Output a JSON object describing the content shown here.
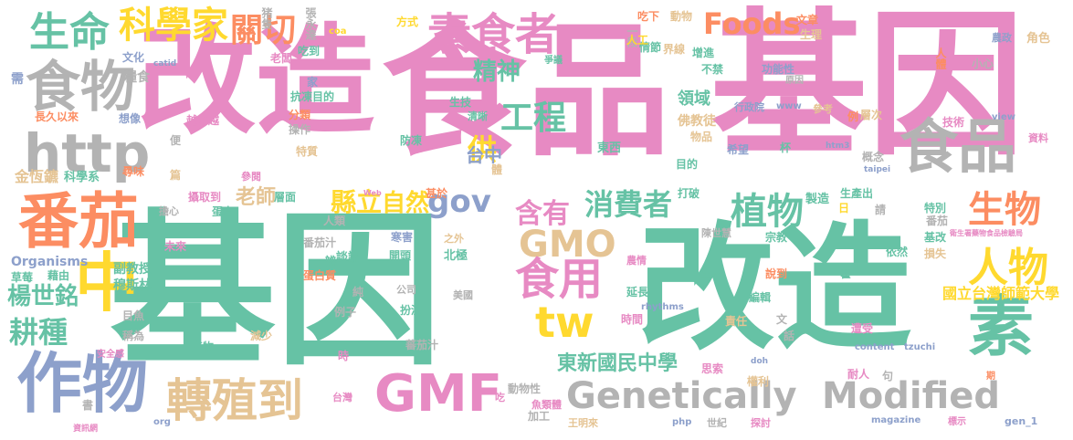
{
  "palette": {
    "green": "#66c2a5",
    "pink": "#e78ac3",
    "orange": "#fc8d62",
    "blue": "#8da0cb",
    "lime": "#a6d854",
    "yellow": "#ffd92f",
    "tan": "#e5c494",
    "gray": "#b3b3b3"
  },
  "words": [
    {
      "text": "改造",
      "color": "pink"
    },
    {
      "text": "食品",
      "color": "pink"
    },
    {
      "text": "基因",
      "color": "pink"
    },
    {
      "text": "基因",
      "color": "green"
    },
    {
      "text": "改造",
      "color": "green"
    },
    {
      "text": "食物",
      "color": "gray"
    },
    {
      "text": "食品",
      "color": "gray"
    },
    {
      "text": "http",
      "color": "gray"
    },
    {
      "text": "番茄",
      "color": "orange"
    },
    {
      "text": "作物",
      "color": "blue"
    },
    {
      "text": "GMF",
      "color": "pink"
    },
    {
      "text": "Genetically",
      "color": "gray"
    },
    {
      "text": "Modified",
      "color": "gray"
    },
    {
      "text": "轉殖到",
      "color": "tan"
    },
    {
      "text": "素",
      "color": "green"
    },
    {
      "text": "生命",
      "color": "green"
    },
    {
      "text": "科學家",
      "color": "yellow"
    },
    {
      "text": "關切",
      "color": "orange"
    },
    {
      "text": "素食者",
      "color": "pink"
    },
    {
      "text": "Foods",
      "color": "orange"
    },
    {
      "text": "精神",
      "color": "green"
    },
    {
      "text": "工程",
      "color": "green"
    },
    {
      "text": "GMO",
      "color": "tan"
    },
    {
      "text": "tw",
      "color": "yellow"
    },
    {
      "text": "生物",
      "color": "orange"
    },
    {
      "text": "人物",
      "color": "yellow"
    },
    {
      "text": "植物",
      "color": "green"
    },
    {
      "text": "含有",
      "color": "pink"
    },
    {
      "text": "食用",
      "color": "pink"
    },
    {
      "text": "消費者",
      "color": "green"
    },
    {
      "text": "中",
      "color": "yellow"
    },
    {
      "text": "耕種",
      "color": "green"
    },
    {
      "text": "楊世銘",
      "color": "green"
    },
    {
      "text": "縣立",
      "color": "yellow"
    },
    {
      "text": "東新國民中學",
      "color": "green"
    },
    {
      "text": "gov",
      "color": "blue"
    },
    {
      "text": "供",
      "color": "yellow"
    },
    {
      "text": "台中",
      "color": "blue"
    },
    {
      "text": "自然",
      "color": "yellow"
    },
    {
      "text": "老師",
      "color": "tan"
    },
    {
      "text": "國立台灣師範大學",
      "color": "yellow"
    },
    {
      "text": "文化",
      "color": "blue"
    },
    {
      "text": "需",
      "color": "blue"
    },
    {
      "text": "糧食",
      "color": "gray"
    },
    {
      "text": "長久以來",
      "color": "orange"
    },
    {
      "text": "想像",
      "color": "blue"
    },
    {
      "text": "金恆鑣",
      "color": "tan"
    },
    {
      "text": "科學系",
      "color": "green"
    },
    {
      "text": "尋味",
      "color": "orange"
    },
    {
      "text": "Organisms",
      "color": "blue"
    },
    {
      "text": "副教授",
      "color": "green"
    },
    {
      "text": "草莓",
      "color": "green"
    },
    {
      "text": "藉由",
      "color": "green"
    },
    {
      "text": "穆斯林",
      "color": "green"
    },
    {
      "text": "目魚",
      "color": "gray"
    },
    {
      "text": "稱為",
      "color": "gray"
    },
    {
      "text": "安全感",
      "color": "pink"
    },
    {
      "text": "書",
      "color": "gray"
    },
    {
      "text": "資訊網",
      "color": "pink"
    },
    {
      "text": "猪隻",
      "color": "gray"
    },
    {
      "text": "張永達",
      "color": "gray"
    },
    {
      "text": "方式",
      "color": "yellow"
    },
    {
      "text": "吃下",
      "color": "orange"
    },
    {
      "text": "一段",
      "color": "gray"
    },
    {
      "text": "動物",
      "color": "tan"
    },
    {
      "text": "文章",
      "color": "orange"
    },
    {
      "text": "生理",
      "color": "tan"
    },
    {
      "text": "農政",
      "color": "blue"
    },
    {
      "text": "角色",
      "color": "tan"
    },
    {
      "text": "人體",
      "color": "orange"
    },
    {
      "text": "老闆",
      "color": "pink"
    },
    {
      "text": "吃到",
      "color": "green"
    },
    {
      "text": "catid",
      "color": "blue"
    },
    {
      "text": "爭議",
      "color": "green"
    },
    {
      "text": "情節",
      "color": "green"
    },
    {
      "text": "人工",
      "color": "yellow"
    },
    {
      "text": "界線",
      "color": "tan"
    },
    {
      "text": "增進",
      "color": "green"
    },
    {
      "text": "不禁",
      "color": "green"
    },
    {
      "text": "功能性",
      "color": "blue"
    },
    {
      "text": "原因",
      "color": "gray"
    },
    {
      "text": "小心",
      "color": "gray"
    },
    {
      "text": "家",
      "color": "blue"
    },
    {
      "text": "抗凍目的",
      "color": "green"
    },
    {
      "text": "分類",
      "color": "orange"
    },
    {
      "text": "生技",
      "color": "green"
    },
    {
      "text": "越來越",
      "color": "pink"
    },
    {
      "text": "操作",
      "color": "gray"
    },
    {
      "text": "便",
      "color": "gray"
    },
    {
      "text": "特質",
      "color": "tan"
    },
    {
      "text": "清晰",
      "color": "green"
    },
    {
      "text": "防凍",
      "color": "green"
    },
    {
      "text": "領域",
      "color": "green"
    },
    {
      "text": "佛教徒",
      "color": "tan"
    },
    {
      "text": "物品",
      "color": "tan"
    },
    {
      "text": "行政院",
      "color": "blue"
    },
    {
      "text": "www",
      "color": "blue"
    },
    {
      "text": "參考",
      "color": "tan"
    },
    {
      "text": "例",
      "color": "orange"
    },
    {
      "text": "層次",
      "color": "tan"
    },
    {
      "text": "技術",
      "color": "pink"
    },
    {
      "text": "view",
      "color": "blue"
    },
    {
      "text": "資料",
      "color": "pink"
    },
    {
      "text": "東西",
      "color": "green"
    },
    {
      "text": "希望",
      "color": "blue"
    },
    {
      "text": "杯",
      "color": "green"
    },
    {
      "text": "htm3",
      "color": "blue"
    },
    {
      "text": "概念",
      "color": "gray"
    },
    {
      "text": "taipei",
      "color": "blue"
    },
    {
      "text": "目的",
      "color": "green"
    },
    {
      "text": "體",
      "color": "tan"
    },
    {
      "text": "篇",
      "color": "tan"
    },
    {
      "text": "參閱",
      "color": "pink"
    },
    {
      "text": "層面",
      "color": "green"
    },
    {
      "text": "攝取到",
      "color": "pink"
    },
    {
      "text": "甚於",
      "color": "orange"
    },
    {
      "text": "打破",
      "color": "green"
    },
    {
      "text": "製造",
      "color": "green"
    },
    {
      "text": "生產出",
      "color": "green"
    },
    {
      "text": "日",
      "color": "yellow"
    },
    {
      "text": "特別",
      "color": "green"
    },
    {
      "text": "請",
      "color": "gray"
    },
    {
      "text": "擔心",
      "color": "gray"
    },
    {
      "text": "蛋白",
      "color": "green"
    },
    {
      "text": "Web",
      "color": "pink"
    },
    {
      "text": "人類",
      "color": "gray"
    },
    {
      "text": "寒害",
      "color": "blue"
    },
    {
      "text": "之外",
      "color": "tan"
    },
    {
      "text": "陳世慧",
      "color": "gray"
    },
    {
      "text": "宗教",
      "color": "green"
    },
    {
      "text": "番茄",
      "color": "gray"
    },
    {
      "text": "基改",
      "color": "green"
    },
    {
      "text": "衛生署藥物食品檢驗局",
      "color": "pink"
    },
    {
      "text": "未來",
      "color": "pink"
    },
    {
      "text": "番茄汁",
      "color": "gray"
    },
    {
      "text": "辨",
      "color": "green"
    },
    {
      "text": "開頭",
      "color": "green"
    },
    {
      "text": "北極",
      "color": "green"
    },
    {
      "text": "農情",
      "color": "pink"
    },
    {
      "text": "依然",
      "color": "green"
    },
    {
      "text": "損失",
      "color": "tan"
    },
    {
      "text": "談論",
      "color": "green"
    },
    {
      "text": "說到",
      "color": "orange"
    },
    {
      "text": "蛋白質",
      "color": "orange"
    },
    {
      "text": "生長",
      "color": "green"
    },
    {
      "text": "藿",
      "color": "green"
    },
    {
      "text": "純",
      "color": "gray"
    },
    {
      "text": "公司",
      "color": "gray"
    },
    {
      "text": "美國",
      "color": "gray"
    },
    {
      "text": "延長",
      "color": "green"
    },
    {
      "text": "編輯",
      "color": "green"
    },
    {
      "text": "例子",
      "color": "gray"
    },
    {
      "text": "扮演",
      "color": "green"
    },
    {
      "text": "rhythms",
      "color": "blue"
    },
    {
      "text": "時間",
      "color": "pink"
    },
    {
      "text": "責任",
      "color": "tan"
    },
    {
      "text": "文",
      "color": "gray"
    },
    {
      "text": "話",
      "color": "gray"
    },
    {
      "text": "減少",
      "color": "tan"
    },
    {
      "text": "產物",
      "color": "green"
    },
    {
      "text": "遭受",
      "color": "pink"
    },
    {
      "text": "時",
      "color": "pink"
    },
    {
      "text": "蕃茄汁",
      "color": "gray"
    },
    {
      "text": "content",
      "color": "blue"
    },
    {
      "text": "tzuchi",
      "color": "blue"
    },
    {
      "text": "思索",
      "color": "pink"
    },
    {
      "text": "權利",
      "color": "tan"
    },
    {
      "text": "耐人",
      "color": "pink"
    },
    {
      "text": "句",
      "color": "gray"
    },
    {
      "text": "doh",
      "color": "blue"
    },
    {
      "text": "期",
      "color": "orange"
    },
    {
      "text": "台灣",
      "color": "pink"
    },
    {
      "text": "吃",
      "color": "pink"
    },
    {
      "text": "動物性",
      "color": "gray"
    },
    {
      "text": "魚類體",
      "color": "pink"
    },
    {
      "text": "org",
      "color": "blue"
    },
    {
      "text": "加工",
      "color": "gray"
    },
    {
      "text": "王明來",
      "color": "tan"
    },
    {
      "text": "php",
      "color": "blue"
    },
    {
      "text": "世紀",
      "color": "gray"
    },
    {
      "text": "探討",
      "color": "pink"
    },
    {
      "text": "magazine",
      "color": "blue"
    },
    {
      "text": "標示",
      "color": "pink"
    },
    {
      "text": "gen_1",
      "color": "blue"
    },
    {
      "text": "coa",
      "color": "yellow"
    }
  ]
}
